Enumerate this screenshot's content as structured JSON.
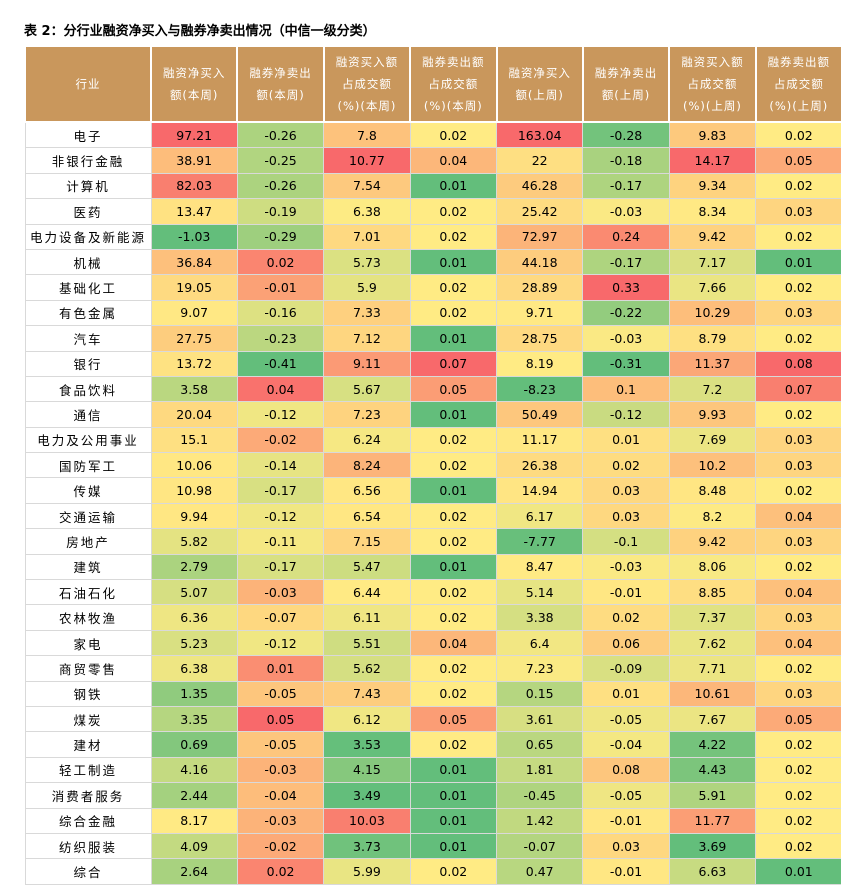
{
  "title": "表 2：分行业融资净买入与融券净卖出情况（中信一级分类）",
  "table": {
    "headers": [
      [
        "行业"
      ],
      [
        "融资净买入",
        "额(本周)"
      ],
      [
        "融券净卖出",
        "额(本周)"
      ],
      [
        "融资买入额",
        "占成交额",
        "(%)(本周)"
      ],
      [
        "融券卖出额",
        "占成交额",
        "(%)(本周)"
      ],
      [
        "融资净买入",
        "额(上周)"
      ],
      [
        "融券净卖出",
        "额(上周)"
      ],
      [
        "融资买入额",
        "占成交额",
        "(%)(上周)"
      ],
      [
        "融券卖出额",
        "占成交额",
        "(%)(上周)"
      ]
    ],
    "rows": [
      [
        "电子",
        97.21,
        -0.26,
        7.8,
        0.02,
        163.04,
        -0.28,
        9.83,
        0.02
      ],
      [
        "非银行金融",
        38.91,
        -0.25,
        10.77,
        0.04,
        22,
        -0.18,
        14.17,
        0.05
      ],
      [
        "计算机",
        82.03,
        -0.26,
        7.54,
        0.01,
        46.28,
        -0.17,
        9.34,
        0.02
      ],
      [
        "医药",
        13.47,
        -0.19,
        6.38,
        0.02,
        25.42,
        -0.03,
        8.34,
        0.03
      ],
      [
        "电力设备及新能源",
        -1.03,
        -0.29,
        7.01,
        0.02,
        72.97,
        0.24,
        9.42,
        0.02
      ],
      [
        "机械",
        36.84,
        0.02,
        5.73,
        0.01,
        44.18,
        -0.17,
        7.17,
        0.01
      ],
      [
        "基础化工",
        19.05,
        -0.01,
        5.9,
        0.02,
        28.89,
        0.33,
        7.66,
        0.02
      ],
      [
        "有色金属",
        9.07,
        -0.16,
        7.33,
        0.02,
        9.71,
        -0.22,
        10.29,
        0.03
      ],
      [
        "汽车",
        27.75,
        -0.23,
        7.12,
        0.01,
        28.75,
        -0.03,
        8.79,
        0.02
      ],
      [
        "银行",
        13.72,
        -0.41,
        9.11,
        0.07,
        8.19,
        -0.31,
        11.37,
        0.08
      ],
      [
        "食品饮料",
        3.58,
        0.04,
        5.67,
        0.05,
        -8.23,
        0.1,
        7.2,
        0.07
      ],
      [
        "通信",
        20.04,
        -0.12,
        7.23,
        0.01,
        50.49,
        -0.12,
        9.93,
        0.02
      ],
      [
        "电力及公用事业",
        15.1,
        -0.02,
        6.24,
        0.02,
        11.17,
        0.01,
        7.69,
        0.03
      ],
      [
        "国防军工",
        10.06,
        -0.14,
        8.24,
        0.02,
        26.38,
        0.02,
        10.2,
        0.03
      ],
      [
        "传媒",
        10.98,
        -0.17,
        6.56,
        0.01,
        14.94,
        0.03,
        8.48,
        0.02
      ],
      [
        "交通运输",
        9.94,
        -0.12,
        6.54,
        0.02,
        6.17,
        0.03,
        8.2,
        0.04
      ],
      [
        "房地产",
        5.82,
        -0.11,
        7.15,
        0.02,
        -7.77,
        -0.1,
        9.42,
        0.03
      ],
      [
        "建筑",
        2.79,
        -0.17,
        5.47,
        0.01,
        8.47,
        -0.03,
        8.06,
        0.02
      ],
      [
        "石油石化",
        5.07,
        -0.03,
        6.44,
        0.02,
        5.14,
        -0.01,
        8.85,
        0.04
      ],
      [
        "农林牧渔",
        6.36,
        -0.07,
        6.11,
        0.02,
        3.38,
        0.02,
        7.37,
        0.03
      ],
      [
        "家电",
        5.23,
        -0.12,
        5.51,
        0.04,
        6.4,
        0.06,
        7.62,
        0.04
      ],
      [
        "商贸零售",
        6.38,
        0.01,
        5.62,
        0.02,
        7.23,
        -0.09,
        7.71,
        0.02
      ],
      [
        "钢铁",
        1.35,
        -0.05,
        7.43,
        0.02,
        0.15,
        0.01,
        10.61,
        0.03
      ],
      [
        "煤炭",
        3.35,
        0.05,
        6.12,
        0.05,
        3.61,
        -0.05,
        7.67,
        0.05
      ],
      [
        "建材",
        0.69,
        -0.05,
        3.53,
        0.02,
        0.65,
        -0.04,
        4.22,
        0.02
      ],
      [
        "轻工制造",
        4.16,
        -0.03,
        4.15,
        0.01,
        1.81,
        0.08,
        4.43,
        0.02
      ],
      [
        "消费者服务",
        2.44,
        -0.04,
        3.49,
        0.01,
        -0.45,
        -0.05,
        5.91,
        0.02
      ],
      [
        "综合金融",
        8.17,
        -0.03,
        10.03,
        0.01,
        1.42,
        -0.01,
        11.77,
        0.02
      ],
      [
        "纺织服装",
        4.09,
        -0.02,
        3.73,
        0.01,
        -0.07,
        0.03,
        3.69,
        0.02
      ],
      [
        "综合",
        2.64,
        0.02,
        5.99,
        0.02,
        0.47,
        -0.01,
        6.63,
        0.01
      ]
    ]
  }
}
